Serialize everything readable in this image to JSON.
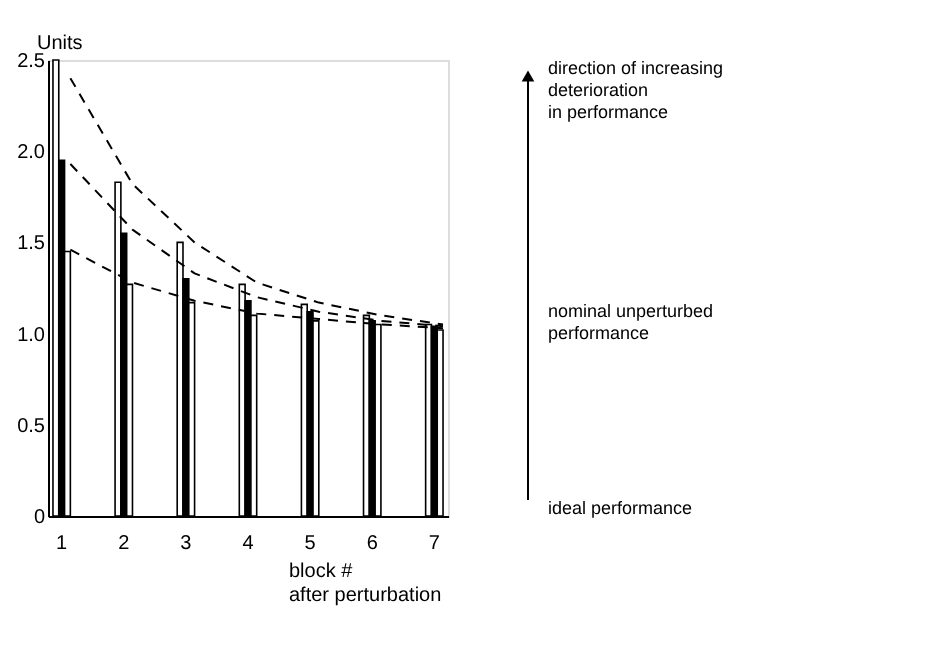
{
  "chart_data": {
    "type": "bar",
    "ylabel": "Units",
    "xlabel": "block #\nafter perturbation",
    "categories": [
      "1",
      "2",
      "3",
      "4",
      "5",
      "6",
      "7"
    ],
    "series": [
      {
        "color": "#ffffff",
        "values": [
          2.5,
          1.83,
          1.5,
          1.27,
          1.16,
          1.1,
          1.05
        ]
      },
      {
        "color": "#000000",
        "values": [
          1.95,
          1.55,
          1.3,
          1.18,
          1.12,
          1.07,
          1.04
        ]
      },
      {
        "color": "#ffffff",
        "values": [
          1.45,
          1.27,
          1.17,
          1.1,
          1.07,
          1.05,
          1.02
        ]
      },
      {
        "type": "line",
        "color": "#000000",
        "line_style": "dashed",
        "values": [
          2.4,
          1.82,
          1.5,
          1.28,
          1.17,
          1.1,
          1.05
        ]
      },
      {
        "type": "line",
        "color": "#000000",
        "line_style": "dashed",
        "values": [
          1.93,
          1.57,
          1.33,
          1.2,
          1.12,
          1.07,
          1.04
        ]
      },
      {
        "type": "line",
        "color": "#000000",
        "line_style": "dashed",
        "values": [
          1.46,
          1.28,
          1.18,
          1.11,
          1.08,
          1.05,
          1.03
        ]
      }
    ],
    "ylim": [
      0,
      2.5
    ],
    "yticks": [
      0,
      0.5,
      {
        "value": 1,
        "label": "1.0"
      },
      1.5,
      {
        "value": 2,
        "label": "2.0"
      },
      2.5
    ],
    "grid": false,
    "legend": false,
    "annotations": [
      "direction of increasing\ndeterioration\nin performance",
      "nominal unperturbed\nperformance",
      "ideal performance"
    ]
  }
}
